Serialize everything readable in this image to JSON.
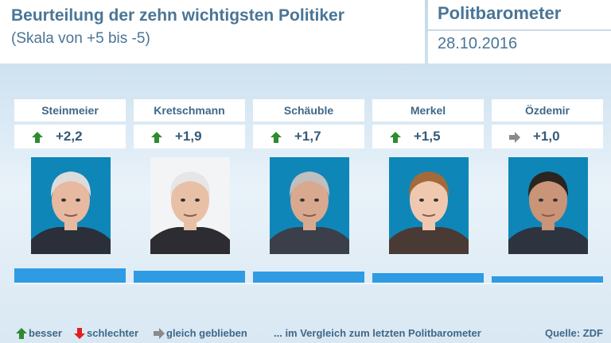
{
  "header": {
    "title": "Beurteilung der zehn wichtigsten Politiker",
    "subtitle": "(Skala von +5 bis -5)",
    "brand": "Politbarometer",
    "date": "28.10.2016"
  },
  "chart_data": {
    "type": "bar",
    "categories": [
      "Steinmeier",
      "Kretschmann",
      "Schäuble",
      "Merkel",
      "Özdemir"
    ],
    "values": [
      2.2,
      1.9,
      1.7,
      1.5,
      1.0
    ],
    "value_labels": [
      "+2,2",
      "+1,9",
      "+1,7",
      "+1,5",
      "+1,0"
    ],
    "trend": [
      "up",
      "up",
      "up",
      "up",
      "same"
    ],
    "ylim": [
      0,
      5
    ],
    "grid": false,
    "bar_color": "#2f9be3"
  },
  "colors": {
    "up": "#2e8b2e",
    "down": "#e02020",
    "same": "#8a8a8a",
    "text": "#4a7596",
    "bar": "#2f9be3"
  },
  "legend": {
    "up_label": "besser",
    "down_label": "schlechter",
    "same_label": "gleich geblieben",
    "note": "... im Vergleich zum letzten Politbarometer",
    "source": "Quelle: ZDF"
  }
}
